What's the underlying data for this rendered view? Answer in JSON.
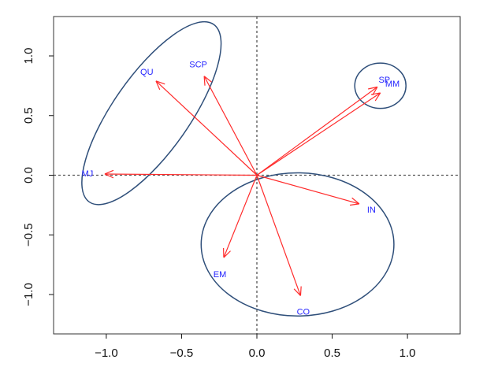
{
  "chart_data": {
    "type": "scatter",
    "title": "",
    "xlabel": "",
    "ylabel": "",
    "xlim": [
      -1.35,
      1.35
    ],
    "ylim": [
      -1.33,
      1.33
    ],
    "grid": false,
    "x_ticks": [
      -1.0,
      -0.5,
      0.0,
      0.5,
      1.0
    ],
    "y_ticks": [
      -1.0,
      -0.5,
      0.0,
      0.5,
      1.0
    ],
    "x_tick_labels": [
      "−1.0",
      "−0.5",
      "0.0",
      "0.5",
      "1.0"
    ],
    "y_tick_labels": [
      "−1.0",
      "−0.5",
      "0.0",
      "0.5",
      "1.0"
    ],
    "reference_lines": {
      "x": 0,
      "y": 0
    },
    "vectors": [
      {
        "label": "QU",
        "x": -0.67,
        "y": 0.79
      },
      {
        "label": "SCP",
        "x": -0.35,
        "y": 0.83
      },
      {
        "label": "SP",
        "x": 0.8,
        "y": 0.74
      },
      {
        "label": "MM",
        "x": 0.82,
        "y": 0.69
      },
      {
        "label": "MJ",
        "x": -1.01,
        "y": 0.01
      },
      {
        "label": "IN",
        "x": 0.68,
        "y": -0.24
      },
      {
        "label": "EM",
        "x": -0.22,
        "y": -0.69
      },
      {
        "label": "CO",
        "x": 0.29,
        "y": -1.01
      }
    ],
    "ellipses": [
      {
        "cx": -0.7,
        "cy": 0.52,
        "rx": 0.72,
        "ry": 0.32,
        "angle_deg": 55
      },
      {
        "cx": 0.82,
        "cy": 0.75,
        "rx": 0.17,
        "ry": 0.19,
        "angle_deg": 0
      },
      {
        "cx": 0.27,
        "cy": -0.58,
        "rx": 0.64,
        "ry": 0.6,
        "angle_deg": 0
      }
    ],
    "colors": {
      "arrow": "#ff2b2b",
      "label": "#2424ff",
      "ellipse": "#2f4f7a",
      "reference": "#555555",
      "frame": "#333333",
      "axis": "#111111"
    }
  }
}
